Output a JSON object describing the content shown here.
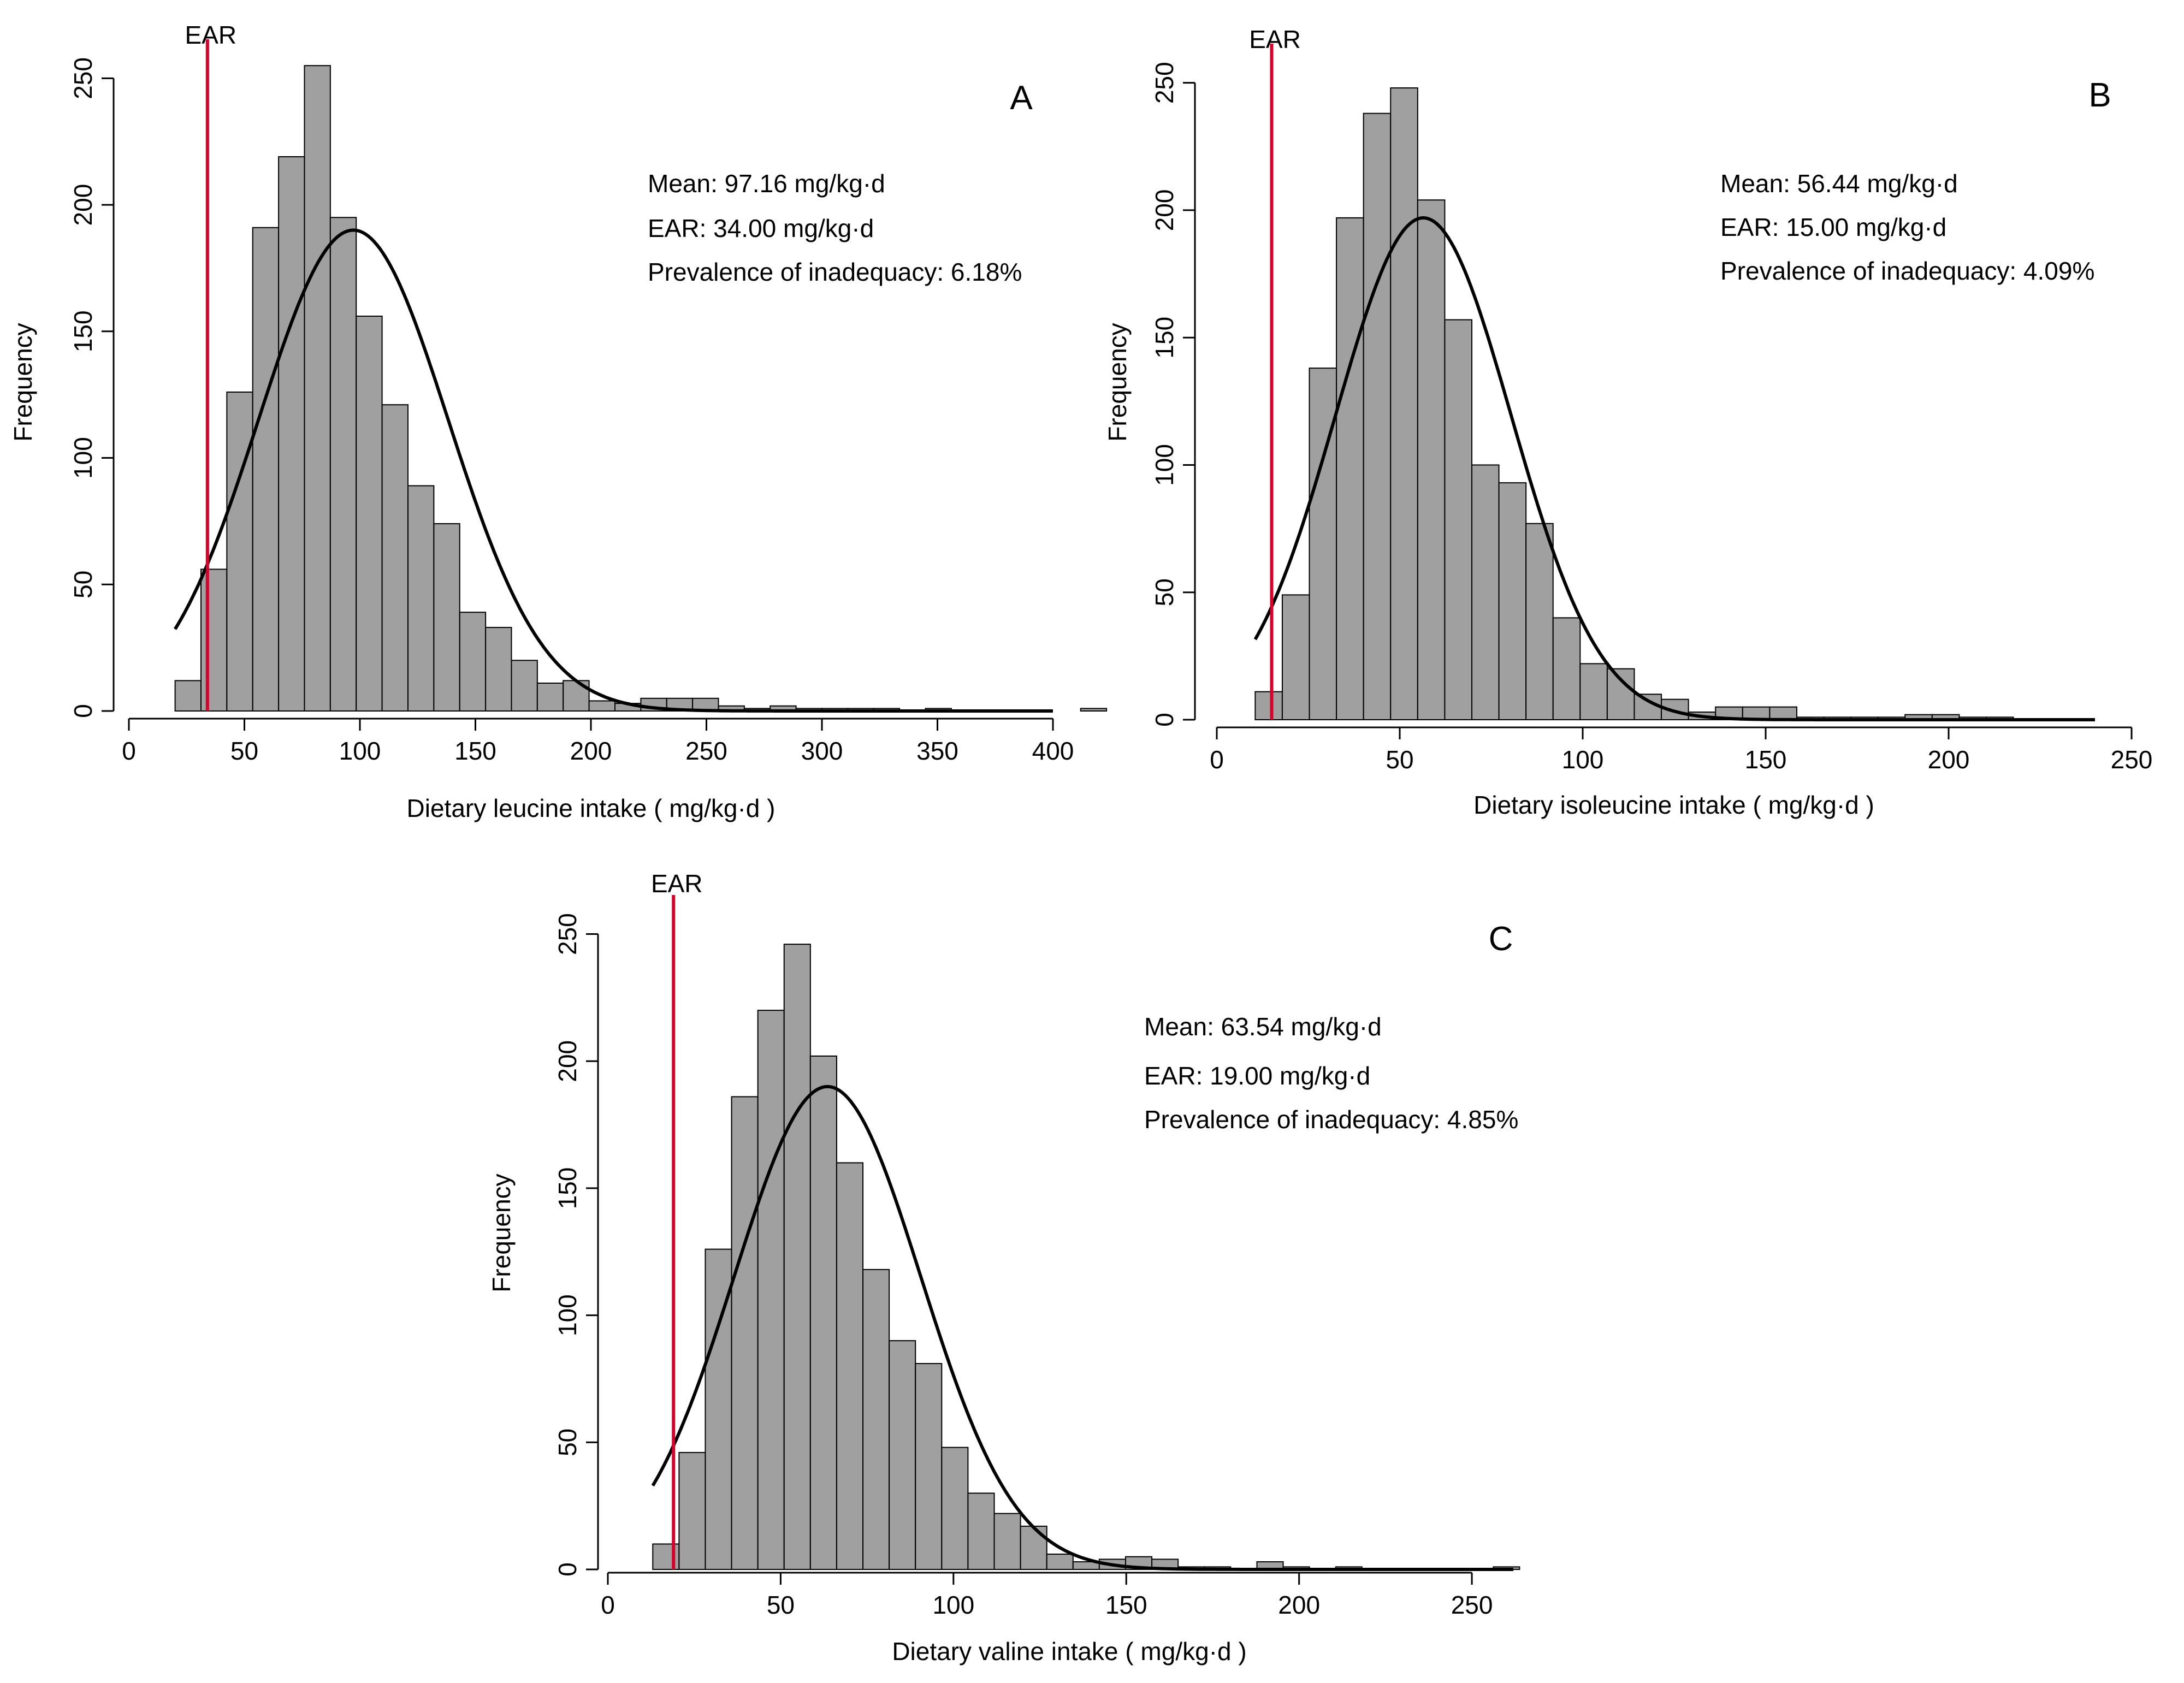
{
  "colors": {
    "bar_fill": "#a0a0a0",
    "bar_stroke": "#000000",
    "ear_line": "#d6002a",
    "curve": "#000000"
  },
  "chart_data": [
    {
      "id": "A",
      "type": "bar",
      "panel_label": "A",
      "ear_label": "EAR",
      "ylabel": "Frequency",
      "xlabel": "Dietary leucine intake ( mg/kg·d )",
      "xlim": [
        0,
        400
      ],
      "ylim": [
        0,
        260
      ],
      "x_ticks": [
        0,
        50,
        100,
        150,
        200,
        250,
        300,
        350,
        400
      ],
      "y_ticks": [
        0,
        50,
        100,
        150,
        200,
        250
      ],
      "bin_start": 20,
      "bin_width": 11.2,
      "values": [
        12,
        56,
        126,
        191,
        219,
        255,
        195,
        156,
        121,
        89,
        74,
        39,
        33,
        20,
        11,
        12,
        4,
        3,
        5,
        5,
        5,
        2,
        1,
        2,
        1,
        1,
        1,
        1,
        0,
        1,
        0,
        0,
        0,
        0,
        0,
        1
      ],
      "ear_value": 34,
      "curve": {
        "mean": 97.16,
        "sd": 41,
        "peak": 190,
        "from": 20,
        "to": 400
      },
      "annotations": [
        "Mean: 97.16 mg/kg·d",
        "EAR: 34.00  mg/kg·d",
        "Prevalence of inadequacy: 6.18%"
      ]
    },
    {
      "id": "B",
      "type": "bar",
      "panel_label": "B",
      "ear_label": "EAR",
      "ylabel": "Frequency",
      "xlabel": "Dietary isoleucine intake ( mg/kg·d )",
      "xlim": [
        0,
        250
      ],
      "ylim": [
        0,
        260
      ],
      "x_ticks": [
        0,
        50,
        100,
        150,
        200,
        250
      ],
      "y_ticks": [
        0,
        50,
        100,
        150,
        200,
        250
      ],
      "bin_start": 10.5,
      "bin_width": 7.4,
      "values": [
        11,
        49,
        138,
        197,
        238,
        248,
        204,
        157,
        100,
        93,
        77,
        40,
        22,
        20,
        10,
        8,
        3,
        5,
        5,
        5,
        1,
        1,
        1,
        1,
        2,
        2,
        1,
        1,
        0,
        0,
        0,
        0,
        0,
        0,
        0,
        0,
        0,
        0,
        0,
        0,
        0
      ],
      "ear_value": 15,
      "curve": {
        "mean": 56.44,
        "sd": 24,
        "peak": 197,
        "from": 10.5,
        "to": 240
      },
      "annotations": [
        "Mean: 56.44 mg/kg·d",
        "EAR: 15.00 mg/kg·d",
        "Prevalence of inadequacy: 4.09%"
      ]
    },
    {
      "id": "C",
      "type": "bar",
      "panel_label": "C",
      "ear_label": "EAR",
      "ylabel": "Frequency",
      "xlabel": "Dietary valine intake ( mg/kg·d )",
      "xlim": [
        0,
        265
      ],
      "ylim": [
        0,
        260
      ],
      "x_ticks": [
        0,
        50,
        100,
        150,
        200,
        250
      ],
      "y_ticks": [
        0,
        50,
        100,
        150,
        200,
        250
      ],
      "bin_start": 13,
      "bin_width": 7.6,
      "values": [
        10,
        46,
        126,
        186,
        220,
        246,
        202,
        160,
        118,
        90,
        81,
        48,
        30,
        22,
        17,
        6,
        3,
        4,
        5,
        4,
        1,
        1,
        0,
        3,
        1,
        0,
        1,
        0,
        0,
        0,
        0,
        0,
        1
      ],
      "ear_value": 19,
      "curve": {
        "mean": 63.54,
        "sd": 27,
        "peak": 190,
        "from": 13,
        "to": 262
      },
      "annotations": [
        "Mean: 63.54 mg/kg·d",
        "EAR: 19.00 mg/kg·d",
        "Prevalence of inadequacy: 4.85%"
      ]
    }
  ]
}
